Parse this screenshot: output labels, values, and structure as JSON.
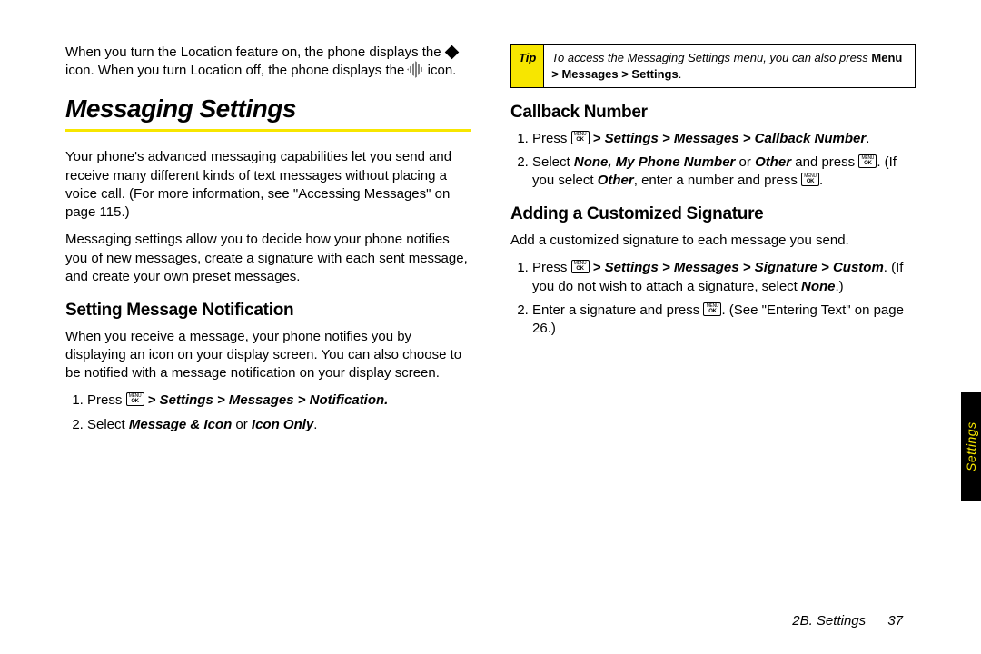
{
  "colors": {
    "accent": "#f7e600",
    "text": "#000000",
    "bg": "#ffffff"
  },
  "left": {
    "intro": {
      "pre": "When you turn the Location feature on, the phone displays the ",
      "mid": " icon. When you turn Location off, the phone displays the ",
      "post": " icon."
    },
    "title": "Messaging Settings",
    "p1": "Your phone's advanced messaging capabilities let you send and receive many different kinds of text messages without placing a voice call. (For more information, see \"Accessing Messages\" on page 115.)",
    "p2": "Messaging settings allow you to decide how your phone notifies you of new messages, create a signature with each sent message, and create your own preset messages.",
    "sub1": "Setting Message Notification",
    "sub1_p": "When you receive a message, your phone notifies you by displaying an icon on your display screen. You can also choose to be notified with a message notification on your display screen.",
    "step1_pre": "Press ",
    "step1_path": " > Settings > Messages > Notification.",
    "step2_a": "Select ",
    "step2_b": "Message & Icon",
    "step2_c": " or ",
    "step2_d": "Icon Only",
    "step2_e": "."
  },
  "right": {
    "tip_label": "Tip",
    "tip_a": "To access the Messaging Settings menu, you can also press ",
    "tip_b": "Menu > Messages > Settings",
    "tip_c": ".",
    "sub2": "Callback Number",
    "cb_step1_pre": "Press ",
    "cb_step1_path": " > Settings > Messages > Callback Number",
    "cb_step1_post": ".",
    "cb_step2_a": "Select ",
    "cb_step2_b": "None, My Phone Number",
    "cb_step2_c": " or ",
    "cb_step2_d": "Other",
    "cb_step2_e": " and press ",
    "cb_step2_f": ". (If you select ",
    "cb_step2_g": "Other",
    "cb_step2_h": ", enter a number and press ",
    "cb_step2_i": ".",
    "sub3": "Adding a Customized Signature",
    "sig_intro": "Add a customized signature to each message you send.",
    "sig_step1_pre": "Press ",
    "sig_step1_path": " > Settings > Messages > Signature > Custom",
    "sig_step1_post_a": ". (If you do not wish to attach a signature, select ",
    "sig_step1_post_b": "None",
    "sig_step1_post_c": ".)",
    "sig_step2_a": "Enter a signature and press ",
    "sig_step2_b": ". (See \"Entering Text\" on page 26.)"
  },
  "side_tab": "Settings",
  "footer": {
    "section": "2B. Settings",
    "page": "37"
  }
}
